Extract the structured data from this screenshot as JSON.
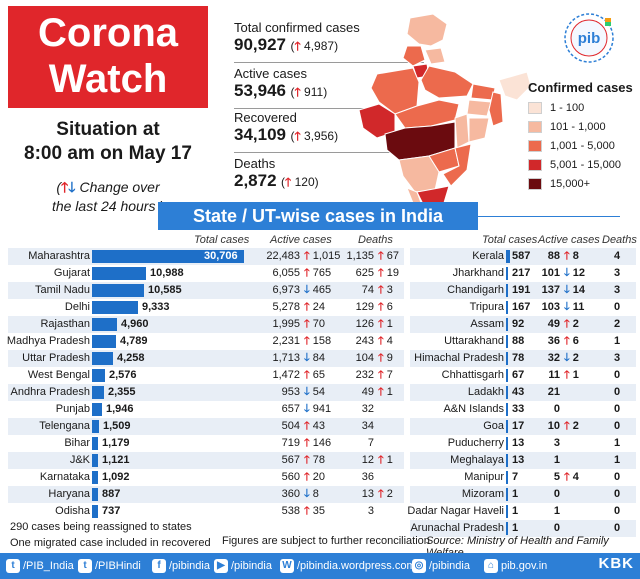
{
  "header": {
    "title_line1": "Corona",
    "title_line2": "Watch",
    "situation_line1": "Situation at",
    "situation_line2": "8:00 am on May 17",
    "change_note_text1": "Change over",
    "change_note_text2": "the last 24 hours"
  },
  "stats": [
    {
      "label": "Total confirmed cases",
      "value": "90,927",
      "delta": "4,987",
      "dir": "up"
    },
    {
      "label": "Active cases",
      "value": "53,946",
      "delta": "911",
      "dir": "up"
    },
    {
      "label": "Recovered",
      "value": "34,109",
      "delta": "3,956",
      "dir": "up"
    },
    {
      "label": "Deaths",
      "value": "2,872",
      "delta": "120",
      "dir": "up"
    }
  ],
  "legend": {
    "title": "Confirmed cases",
    "items": [
      {
        "label": "1 - 100",
        "color": "#fbe3d6"
      },
      {
        "label": "101 - 1,000",
        "color": "#f6b9a0"
      },
      {
        "label": "1,001 - 5,000",
        "color": "#ec6a4d"
      },
      {
        "label": "5,001 - 15,000",
        "color": "#d1282a"
      },
      {
        "label": "15,000+",
        "color": "#6b0b0f"
      }
    ]
  },
  "section_title": "State / UT-wise cases in India",
  "left_table": {
    "headers": {
      "total": "Total cases",
      "active": "Active cases",
      "deaths": "Deaths"
    },
    "rows": [
      {
        "state": "Maharashtra",
        "total": "30,706",
        "total_num": 30706,
        "active": "22,483",
        "active_dir": "up",
        "active_delta": "1,015",
        "deaths": "1,135",
        "deaths_dir": "up",
        "deaths_delta": "67"
      },
      {
        "state": "Gujarat",
        "total": "10,988",
        "total_num": 10988,
        "active": "6,055",
        "active_dir": "up",
        "active_delta": "765",
        "deaths": "625",
        "deaths_dir": "up",
        "deaths_delta": "19"
      },
      {
        "state": "Tamil Nadu",
        "total": "10,585",
        "total_num": 10585,
        "active": "6,973",
        "active_dir": "down",
        "active_delta": "465",
        "deaths": "74",
        "deaths_dir": "up",
        "deaths_delta": "3"
      },
      {
        "state": "Delhi",
        "total": "9,333",
        "total_num": 9333,
        "active": "5,278",
        "active_dir": "up",
        "active_delta": "24",
        "deaths": "129",
        "deaths_dir": "up",
        "deaths_delta": "6"
      },
      {
        "state": "Rajasthan",
        "total": "4,960",
        "total_num": 4960,
        "active": "1,995",
        "active_dir": "up",
        "active_delta": "70",
        "deaths": "126",
        "deaths_dir": "up",
        "deaths_delta": "1"
      },
      {
        "state": "Madhya Pradesh",
        "total": "4,789",
        "total_num": 4789,
        "active": "2,231",
        "active_dir": "up",
        "active_delta": "158",
        "deaths": "243",
        "deaths_dir": "up",
        "deaths_delta": "4"
      },
      {
        "state": "Uttar Pradesh",
        "total": "4,258",
        "total_num": 4258,
        "active": "1,713",
        "active_dir": "down",
        "active_delta": "84",
        "deaths": "104",
        "deaths_dir": "up",
        "deaths_delta": "9"
      },
      {
        "state": "West Bengal",
        "total": "2,576",
        "total_num": 2576,
        "active": "1,472",
        "active_dir": "up",
        "active_delta": "65",
        "deaths": "232",
        "deaths_dir": "up",
        "deaths_delta": "7"
      },
      {
        "state": "Andhra Pradesh",
        "total": "2,355",
        "total_num": 2355,
        "active": "953",
        "active_dir": "down",
        "active_delta": "54",
        "deaths": "49",
        "deaths_dir": "up",
        "deaths_delta": "1"
      },
      {
        "state": "Punjab",
        "total": "1,946",
        "total_num": 1946,
        "active": "657",
        "active_dir": "down",
        "active_delta": "941",
        "deaths": "32",
        "deaths_dir": "",
        "deaths_delta": ""
      },
      {
        "state": "Telengana",
        "total": "1,509",
        "total_num": 1509,
        "active": "504",
        "active_dir": "up",
        "active_delta": "43",
        "deaths": "34",
        "deaths_dir": "",
        "deaths_delta": ""
      },
      {
        "state": "Bihar",
        "total": "1,179",
        "total_num": 1179,
        "active": "719",
        "active_dir": "up",
        "active_delta": "146",
        "deaths": "7",
        "deaths_dir": "",
        "deaths_delta": ""
      },
      {
        "state": "J&K",
        "total": "1,121",
        "total_num": 1121,
        "active": "567",
        "active_dir": "up",
        "active_delta": "78",
        "deaths": "12",
        "deaths_dir": "up",
        "deaths_delta": "1"
      },
      {
        "state": "Karnataka",
        "total": "1,092",
        "total_num": 1092,
        "active": "560",
        "active_dir": "up",
        "active_delta": "20",
        "deaths": "36",
        "deaths_dir": "",
        "deaths_delta": ""
      },
      {
        "state": "Haryana",
        "total": "887",
        "total_num": 887,
        "active": "360",
        "active_dir": "down",
        "active_delta": "8",
        "deaths": "13",
        "deaths_dir": "up",
        "deaths_delta": "2"
      },
      {
        "state": "Odisha",
        "total": "737",
        "total_num": 737,
        "active": "538",
        "active_dir": "up",
        "active_delta": "35",
        "deaths": "3",
        "deaths_dir": "",
        "deaths_delta": ""
      }
    ]
  },
  "right_table": {
    "headers": {
      "total": "Total cases",
      "active": "Active cases",
      "deaths": "Deaths"
    },
    "rows": [
      {
        "state": "Kerala",
        "total": "587",
        "total_num": 587,
        "active": "88",
        "active_dir": "up",
        "active_delta": "8",
        "deaths": "4"
      },
      {
        "state": "Jharkhand",
        "total": "217",
        "total_num": 217,
        "active": "101",
        "active_dir": "down",
        "active_delta": "12",
        "deaths": "3"
      },
      {
        "state": "Chandigarh",
        "total": "191",
        "total_num": 191,
        "active": "137",
        "active_dir": "down",
        "active_delta": "14",
        "deaths": "3"
      },
      {
        "state": "Tripura",
        "total": "167",
        "total_num": 167,
        "active": "103",
        "active_dir": "down",
        "active_delta": "11",
        "deaths": "0"
      },
      {
        "state": "Assam",
        "total": "92",
        "total_num": 92,
        "active": "49",
        "active_dir": "up",
        "active_delta": "2",
        "deaths": "2"
      },
      {
        "state": "Uttarakhand",
        "total": "88",
        "total_num": 88,
        "active": "36",
        "active_dir": "up",
        "active_delta": "6",
        "deaths": "1"
      },
      {
        "state": "Himachal Pradesh",
        "total": "78",
        "total_num": 78,
        "active": "32",
        "active_dir": "down",
        "active_delta": "2",
        "deaths": "3"
      },
      {
        "state": "Chhattisgarh",
        "total": "67",
        "total_num": 67,
        "active": "11",
        "active_dir": "up",
        "active_delta": "1",
        "deaths": "0"
      },
      {
        "state": "Ladakh",
        "total": "43",
        "total_num": 43,
        "active": "21",
        "active_dir": "",
        "active_delta": "",
        "deaths": "0"
      },
      {
        "state": "A&N Islands",
        "total": "33",
        "total_num": 33,
        "active": "0",
        "active_dir": "",
        "active_delta": "",
        "deaths": "0"
      },
      {
        "state": "Goa",
        "total": "17",
        "total_num": 17,
        "active": "10",
        "active_dir": "up",
        "active_delta": "2",
        "deaths": "0"
      },
      {
        "state": "Puducherry",
        "total": "13",
        "total_num": 13,
        "active": "3",
        "active_dir": "",
        "active_delta": "",
        "deaths": "1"
      },
      {
        "state": "Meghalaya",
        "total": "13",
        "total_num": 13,
        "active": "1",
        "active_dir": "",
        "active_delta": "",
        "deaths": "1"
      },
      {
        "state": "Manipur",
        "total": "7",
        "total_num": 7,
        "active": "5",
        "active_dir": "up",
        "active_delta": "4",
        "deaths": "0"
      },
      {
        "state": "Mizoram",
        "total": "1",
        "total_num": 1,
        "active": "0",
        "active_dir": "",
        "active_delta": "",
        "deaths": "0"
      },
      {
        "state": "Dadar Nagar Haveli",
        "total": "1",
        "total_num": 1,
        "active": "1",
        "active_dir": "",
        "active_delta": "",
        "deaths": "0"
      },
      {
        "state": "Arunachal Pradesh",
        "total": "1",
        "total_num": 1,
        "active": "0",
        "active_dir": "",
        "active_delta": "",
        "deaths": "0"
      }
    ]
  },
  "footer": {
    "note1": "290 cases being reassigned to states",
    "note2": "One migrated case included in recovered",
    "note3": "Figures are subject to further reconciliation",
    "source": "Source: Ministry of Health and Family Welfare",
    "socials": [
      {
        "icon": "twitter-icon",
        "glyph": "t",
        "handle": "/PIB_India"
      },
      {
        "icon": "twitter-icon",
        "glyph": "t",
        "handle": "/PIBHindi"
      },
      {
        "icon": "facebook-icon",
        "glyph": "f",
        "handle": "/pibindia"
      },
      {
        "icon": "youtube-icon",
        "glyph": "▶",
        "handle": "/pibindia"
      },
      {
        "icon": "wordpress-icon",
        "glyph": "W",
        "handle": "/pibindia.wordpress.com"
      },
      {
        "icon": "instagram-icon",
        "glyph": "◎",
        "handle": "/pibindia"
      },
      {
        "icon": "web-icon",
        "glyph": "⌂",
        "handle": "pib.gov.in"
      }
    ],
    "brand": "KBK"
  },
  "pib_logo_text": "pib"
}
